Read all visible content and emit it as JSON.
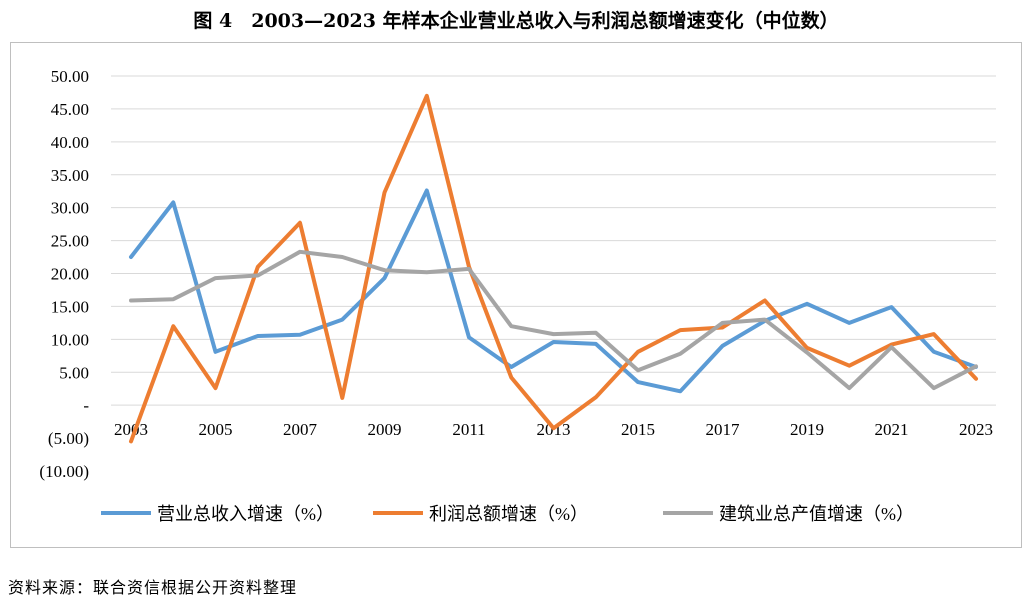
{
  "figure": {
    "title": "图 4　2003—2023 年样本企业营业总收入与利润总额增速变化（中位数）",
    "source": "资料来源：联合资信根据公开资料整理"
  },
  "chart_data": {
    "type": "line",
    "x": [
      2003,
      2004,
      2005,
      2006,
      2007,
      2008,
      2009,
      2010,
      2011,
      2012,
      2013,
      2014,
      2015,
      2016,
      2017,
      2018,
      2019,
      2020,
      2021,
      2022,
      2023
    ],
    "x_tick_labels": [
      "2003",
      "2005",
      "2007",
      "2009",
      "2011",
      "2013",
      "2015",
      "2017",
      "2019",
      "2021",
      "2023"
    ],
    "y_tick_labels": [
      "50.00",
      "45.00",
      "40.00",
      "35.00",
      "30.00",
      "25.00",
      "20.00",
      "15.00",
      "10.00",
      "5.00",
      "-",
      "(5.00)",
      "(10.00)"
    ],
    "ylim": [
      -10,
      50
    ],
    "grid": true,
    "legend_position": "bottom",
    "series": [
      {
        "name": "营业总收入增速（%）",
        "color": "#5b9bd5",
        "values": [
          22.5,
          30.8,
          8.1,
          10.5,
          10.7,
          13.0,
          19.3,
          32.6,
          10.3,
          5.8,
          9.6,
          9.3,
          3.5,
          2.1,
          9.0,
          12.8,
          15.4,
          12.5,
          14.9,
          8.1,
          5.8
        ]
      },
      {
        "name": "利润总额增速（%）",
        "color": "#ed7d31",
        "values": [
          -5.5,
          12.0,
          2.6,
          21.0,
          27.7,
          1.1,
          32.3,
          47.0,
          21.0,
          4.2,
          -3.5,
          1.2,
          8.1,
          11.4,
          11.8,
          15.9,
          8.7,
          6.0,
          9.2,
          10.8,
          4.0
        ]
      },
      {
        "name": "建筑业总产值增速（%）",
        "color": "#a5a5a5",
        "values": [
          15.9,
          16.1,
          19.3,
          19.7,
          23.3,
          22.5,
          20.5,
          20.2,
          20.7,
          12.0,
          10.8,
          11.0,
          5.3,
          7.8,
          12.5,
          13.0,
          8.0,
          2.6,
          8.8,
          2.6,
          5.9
        ]
      }
    ]
  }
}
